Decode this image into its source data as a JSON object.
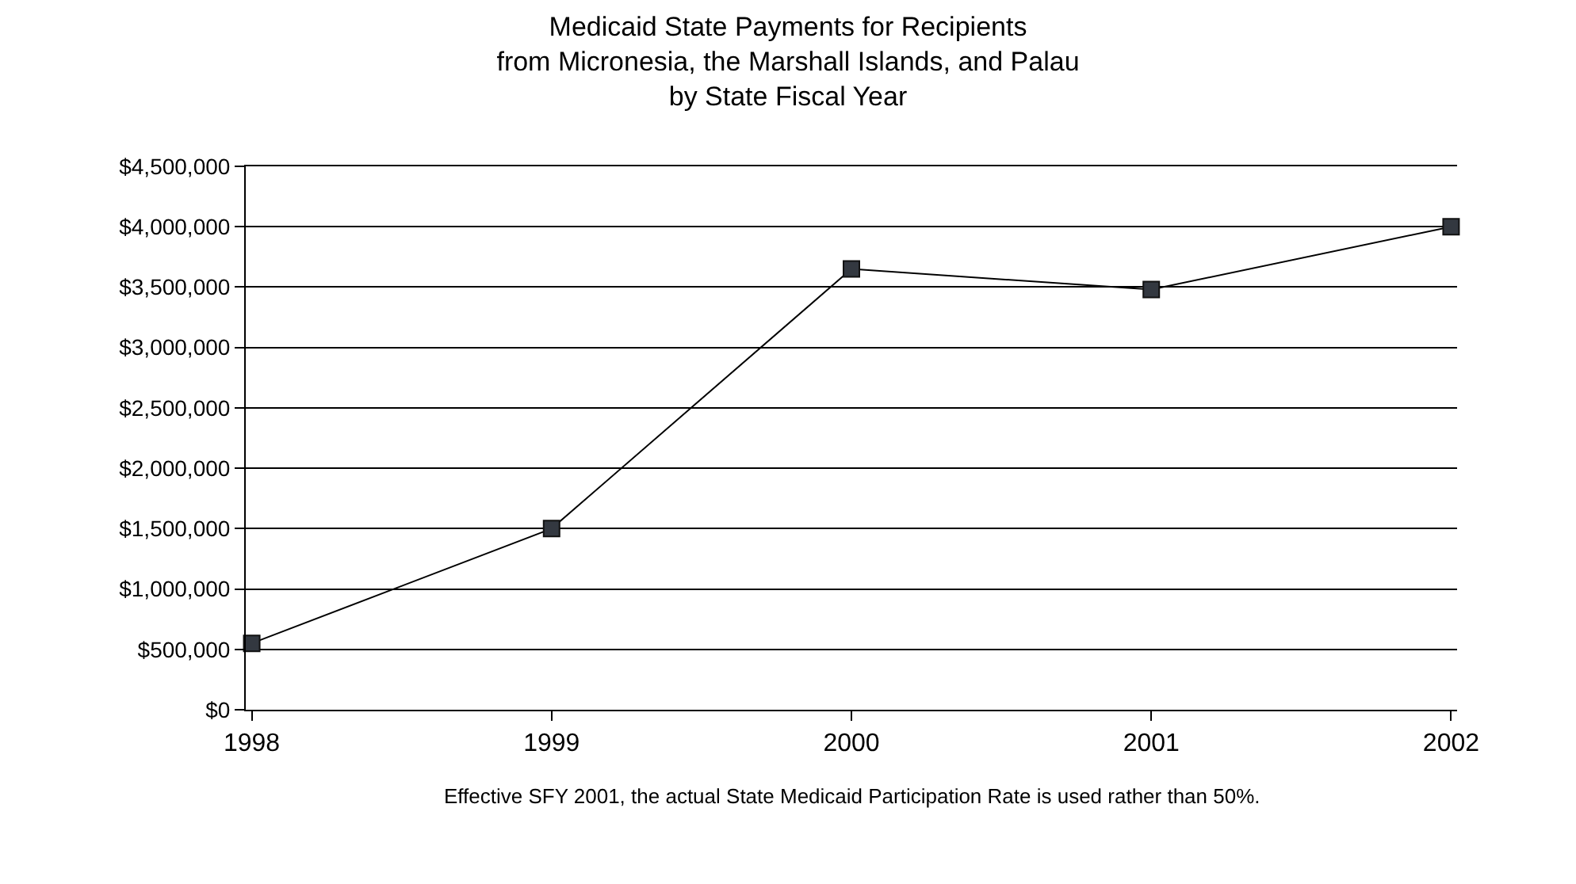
{
  "chart_data": {
    "type": "line",
    "title": "Medicaid State Payments for Recipients\nfrom Micronesia, the Marshall Islands, and Palau\nby State Fiscal Year",
    "categories": [
      "1998",
      "1999",
      "2000",
      "2001",
      "2002"
    ],
    "series": [
      {
        "color": "#333840",
        "values": [
          550000,
          1500000,
          3650000,
          3480000,
          4000000
        ]
      }
    ],
    "ylim": [
      0,
      4500000
    ],
    "yticks": [
      {
        "value": 0,
        "label": "$0"
      },
      {
        "value": 500000,
        "label": "$500,000"
      },
      {
        "value": 1000000,
        "label": "$1,000,000"
      },
      {
        "value": 1500000,
        "label": "$1,500,000"
      },
      {
        "value": 2000000,
        "label": "$2,000,000"
      },
      {
        "value": 2500000,
        "label": "$2,500,000"
      },
      {
        "value": 3000000,
        "label": "$3,000,000"
      },
      {
        "value": 3500000,
        "label": "$3,500,000"
      },
      {
        "value": 4000000,
        "label": "$4,000,000"
      },
      {
        "value": 4500000,
        "label": "$4,500,000"
      }
    ],
    "grid": "y",
    "marker": "square",
    "line_style": "solid",
    "annotations": [
      "Effective SFY 2001, the actual State Medicaid Participation Rate is used rather than 50%."
    ]
  }
}
